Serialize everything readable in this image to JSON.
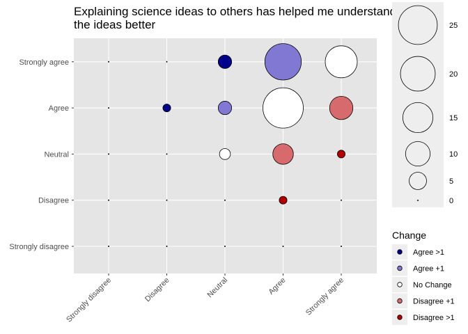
{
  "chart_data": {
    "type": "scatter",
    "title": [
      "Explaining science ideas to others has helped me understand",
      "the ideas better"
    ],
    "x_categories": [
      "Strongly disagree",
      "Disagree",
      "Neutral",
      "Agree",
      "Strongly agree"
    ],
    "y_categories": [
      "Strongly disagree",
      "Disagree",
      "Neutral",
      "Agree",
      "Strongly agree"
    ],
    "xlabel": "",
    "ylabel": "",
    "points": [
      {
        "x": "Neutral",
        "y": "Strongly agree",
        "count": 3,
        "change": "Agree >1"
      },
      {
        "x": "Agree",
        "y": "Strongly agree",
        "count": 22,
        "change": "Agree +1"
      },
      {
        "x": "Strongly agree",
        "y": "Strongly agree",
        "count": 17,
        "change": "No Change"
      },
      {
        "x": "Disagree",
        "y": "Agree",
        "count": 1,
        "change": "Agree >1"
      },
      {
        "x": "Neutral",
        "y": "Agree",
        "count": 3,
        "change": "Agree +1"
      },
      {
        "x": "Agree",
        "y": "Agree",
        "count": 27,
        "change": "No Change"
      },
      {
        "x": "Strongly agree",
        "y": "Agree",
        "count": 9,
        "change": "Disagree +1"
      },
      {
        "x": "Neutral",
        "y": "Neutral",
        "count": 2,
        "change": "No Change"
      },
      {
        "x": "Agree",
        "y": "Neutral",
        "count": 7,
        "change": "Disagree +1"
      },
      {
        "x": "Strongly agree",
        "y": "Neutral",
        "count": 1,
        "change": "Disagree >1"
      },
      {
        "x": "Agree",
        "y": "Disagree",
        "count": 1,
        "change": "Disagree >1"
      }
    ],
    "size_legend": {
      "breaks": [
        25,
        20,
        15,
        10,
        5,
        0
      ]
    },
    "color_legend": {
      "title": "Change",
      "entries": [
        {
          "label": "Agree >1",
          "color": "#00008b"
        },
        {
          "label": "Agree +1",
          "color": "#8078d2"
        },
        {
          "label": "No Change",
          "color": "#ffffff"
        },
        {
          "label": "Disagree +1",
          "color": "#d66a6c"
        },
        {
          "label": "Disagree >1",
          "color": "#b00000"
        }
      ]
    },
    "grid": true,
    "background": "#e5e5e5"
  }
}
